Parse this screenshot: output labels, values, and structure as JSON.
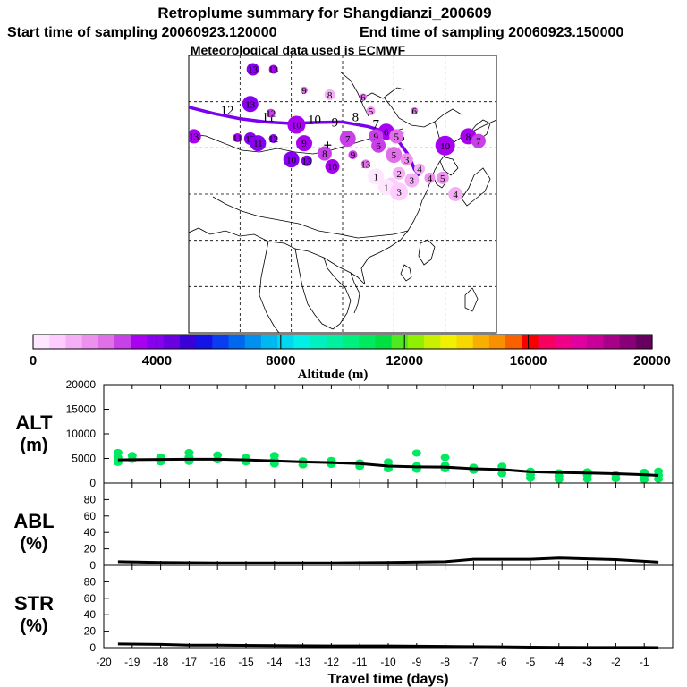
{
  "header": {
    "title": "Retroplume summary for Shangdianzi_200609",
    "start_label": "Start time of sampling 20060923.120000",
    "end_label": "End time of sampling 20060923.150000",
    "met_label": "Meteorological data used is ECMWF"
  },
  "colorbar": {
    "axis_label": "Altitude (m)",
    "ticks": [
      "0",
      "4000",
      "8000",
      "12000",
      "16000",
      "20000"
    ],
    "colors": [
      "#ffe6ff",
      "#ffccff",
      "#f5b0f5",
      "#ee90ee",
      "#e070e8",
      "#c840e8",
      "#a800f0",
      "#8800f0",
      "#6a00e0",
      "#3a00d8",
      "#1414e8",
      "#0a3cf0",
      "#0068f0",
      "#0090f0",
      "#00b8f0",
      "#00d8f0",
      "#00f0e8",
      "#00f0c0",
      "#00f0a0",
      "#00f080",
      "#00ea60",
      "#00e040",
      "#50e820",
      "#90f000",
      "#c8f000",
      "#f0f000",
      "#f8d800",
      "#f8b000",
      "#f89000",
      "#f86000",
      "#f80000",
      "#f80060",
      "#f00088",
      "#e000a0",
      "#c80098",
      "#a80088",
      "#880078",
      "#680060"
    ]
  },
  "colors": {
    "plume_path": "#7a00f0",
    "altitude_points": "#00ea60",
    "line": "#000000"
  },
  "chart_data": [
    {
      "type": "scatter",
      "name": "retroplume map",
      "xlim": [
        90,
        150
      ],
      "ylim": [
        0,
        60
      ],
      "grid_lons": [
        100,
        110,
        120,
        130,
        140
      ],
      "grid_lats": [
        10,
        20,
        30,
        40,
        50
      ],
      "receptor": {
        "lon": 117.1,
        "lat": 40.6
      },
      "path": [
        [
          90,
          48.8
        ],
        [
          95,
          47.4
        ],
        [
          100,
          46.3
        ],
        [
          105,
          45.6
        ],
        [
          110,
          45.3
        ],
        [
          115,
          45.5
        ],
        [
          120,
          45.6
        ],
        [
          125,
          44.6
        ],
        [
          128,
          43.6
        ],
        [
          131,
          41.3
        ],
        [
          133,
          38.2
        ],
        [
          134,
          35.4
        ],
        [
          135,
          34.0
        ]
      ],
      "path_labels": [
        {
          "t": "12",
          "lon": 97.5,
          "lat": 47.2
        },
        {
          "t": "11",
          "lon": 105.5,
          "lat": 45.8
        },
        {
          "t": "10",
          "lon": 114.5,
          "lat": 45.2
        },
        {
          "t": "9",
          "lon": 118.5,
          "lat": 44.6
        },
        {
          "t": "8",
          "lon": 122.5,
          "lat": 45.8
        },
        {
          "t": "7",
          "lon": 126.5,
          "lat": 44.2
        },
        {
          "t": "6",
          "lon": 128.0,
          "lat": 43.3
        },
        {
          "t": "5",
          "lon": 131.5,
          "lat": 41.4
        }
      ],
      "clusters": [
        {
          "t": "13",
          "lon": 91.0,
          "lat": 42.5,
          "alt": 3400,
          "r": 8
        },
        {
          "t": "13",
          "lon": 102.5,
          "lat": 57.0,
          "alt": 4100,
          "r": 7
        },
        {
          "t": "13",
          "lon": 106.5,
          "lat": 57.0,
          "alt": 3400,
          "r": 5
        },
        {
          "t": "13",
          "lon": 102.0,
          "lat": 49.5,
          "alt": 3800,
          "r": 9
        },
        {
          "t": "12",
          "lon": 106.0,
          "lat": 47.5,
          "alt": 3000,
          "r": 5
        },
        {
          "t": "9",
          "lon": 112.5,
          "lat": 52.5,
          "alt": 2600,
          "r": 4
        },
        {
          "t": "8",
          "lon": 117.5,
          "lat": 51.5,
          "alt": 1500,
          "r": 6
        },
        {
          "t": "6",
          "lon": 124.0,
          "lat": 51.0,
          "alt": 2200,
          "r": 4
        },
        {
          "t": "5",
          "lon": 125.5,
          "lat": 48.0,
          "alt": 2000,
          "r": 5
        },
        {
          "t": "6",
          "lon": 134.0,
          "lat": 48.0,
          "alt": 2500,
          "r": 4
        },
        {
          "t": "12",
          "lon": 102.0,
          "lat": 42.0,
          "alt": 4100,
          "r": 7
        },
        {
          "t": "11",
          "lon": 103.5,
          "lat": 41.0,
          "alt": 3800,
          "r": 9
        },
        {
          "t": "11",
          "lon": 99.5,
          "lat": 42.2,
          "alt": 3600,
          "r": 5
        },
        {
          "t": "10",
          "lon": 111.0,
          "lat": 45.0,
          "alt": 3600,
          "r": 10
        },
        {
          "t": "9",
          "lon": 112.5,
          "lat": 41.0,
          "alt": 3400,
          "r": 9
        },
        {
          "t": "8",
          "lon": 116.5,
          "lat": 38.8,
          "alt": 3000,
          "r": 8
        },
        {
          "t": "7",
          "lon": 121.0,
          "lat": 42.0,
          "alt": 3100,
          "r": 9
        },
        {
          "t": "6",
          "lon": 128.5,
          "lat": 43.5,
          "alt": 3400,
          "r": 9
        },
        {
          "t": "5",
          "lon": 130.5,
          "lat": 42.5,
          "alt": 2500,
          "r": 8
        },
        {
          "t": "9",
          "lon": 126.5,
          "lat": 42.5,
          "alt": 2800,
          "r": 8
        },
        {
          "t": "12",
          "lon": 106.5,
          "lat": 42.0,
          "alt": 3700,
          "r": 5
        },
        {
          "t": "10",
          "lon": 110.0,
          "lat": 37.5,
          "alt": 3900,
          "r": 9
        },
        {
          "t": "13",
          "lon": 113.0,
          "lat": 37.2,
          "alt": 3700,
          "r": 6
        },
        {
          "t": "10",
          "lon": 118.0,
          "lat": 36.0,
          "alt": 3500,
          "r": 8
        },
        {
          "t": "9",
          "lon": 122.0,
          "lat": 38.5,
          "alt": 2800,
          "r": 5
        },
        {
          "t": "13",
          "lon": 124.5,
          "lat": 36.5,
          "alt": 2400,
          "r": 5
        },
        {
          "t": "6",
          "lon": 127.0,
          "lat": 40.5,
          "alt": 2700,
          "r": 8
        },
        {
          "t": "5",
          "lon": 130.0,
          "lat": 38.5,
          "alt": 2600,
          "r": 9
        },
        {
          "t": "3",
          "lon": 132.5,
          "lat": 37.5,
          "alt": 1700,
          "r": 7
        },
        {
          "t": "4",
          "lon": 135.0,
          "lat": 35.5,
          "alt": 1500,
          "r": 6
        },
        {
          "t": "10",
          "lon": 140.0,
          "lat": 40.5,
          "alt": 3200,
          "r": 11
        },
        {
          "t": "8",
          "lon": 144.5,
          "lat": 42.5,
          "alt": 3300,
          "r": 9
        },
        {
          "t": "7",
          "lon": 146.5,
          "lat": 41.5,
          "alt": 3100,
          "r": 8
        },
        {
          "t": "4",
          "lon": 137.0,
          "lat": 33.5,
          "alt": 1600,
          "r": 6
        },
        {
          "t": "3",
          "lon": 133.5,
          "lat": 33.0,
          "alt": 1200,
          "r": 8
        },
        {
          "t": "2",
          "lon": 131.0,
          "lat": 34.5,
          "alt": 1200,
          "r": 7
        },
        {
          "t": "1",
          "lon": 126.5,
          "lat": 33.8,
          "alt": 400,
          "r": 9
        },
        {
          "t": "2",
          "lon": 129.5,
          "lat": 32.0,
          "alt": 800,
          "r": 8
        },
        {
          "t": "1",
          "lon": 128.5,
          "lat": 31.5,
          "alt": 500,
          "r": 9
        },
        {
          "t": "3",
          "lon": 131.0,
          "lat": 30.5,
          "alt": 900,
          "r": 10
        },
        {
          "t": "5",
          "lon": 139.5,
          "lat": 33.5,
          "alt": 1800,
          "r": 7
        },
        {
          "t": "4",
          "lon": 142.0,
          "lat": 30.0,
          "alt": 1400,
          "r": 8
        }
      ]
    },
    {
      "type": "line",
      "name": "ALT",
      "ylabel": "ALT (m)",
      "ylabel_lines": [
        "ALT",
        "(m)"
      ],
      "xlim": [
        -20,
        0
      ],
      "ylim": [
        0,
        20000
      ],
      "yticks": [
        "0",
        "5000",
        "10000",
        "15000",
        "20000"
      ],
      "ytick_values": [
        0,
        5000,
        10000,
        15000,
        20000
      ],
      "x": [
        -19.5,
        -19,
        -18,
        -17,
        -16,
        -15,
        -14,
        -13,
        -12,
        -11,
        -10,
        -9,
        -8,
        -7,
        -6,
        -5,
        -4,
        -3,
        -2,
        -1,
        -0.5
      ],
      "values": [
        4700,
        4750,
        4800,
        4850,
        4850,
        4700,
        4500,
        4300,
        4150,
        3950,
        3450,
        3300,
        3250,
        2900,
        2750,
        2300,
        2150,
        2050,
        1900,
        1700,
        1550
      ],
      "points": [
        [
          -19.5,
          4200
        ],
        [
          -19.5,
          5200
        ],
        [
          -19.5,
          6200
        ],
        [
          -19,
          4800
        ],
        [
          -19,
          5600
        ],
        [
          -18,
          4300
        ],
        [
          -18,
          5300
        ],
        [
          -17,
          4400
        ],
        [
          -17,
          5300
        ],
        [
          -17,
          6200
        ],
        [
          -16,
          4700
        ],
        [
          -16,
          5700
        ],
        [
          -15,
          4300
        ],
        [
          -15,
          5200
        ],
        [
          -14,
          3900
        ],
        [
          -14,
          4700
        ],
        [
          -14,
          5600
        ],
        [
          -13,
          3700
        ],
        [
          -13,
          4500
        ],
        [
          -12,
          3800
        ],
        [
          -12,
          4600
        ],
        [
          -11,
          3400
        ],
        [
          -11,
          4100
        ],
        [
          -10,
          2900
        ],
        [
          -10,
          3600
        ],
        [
          -10,
          4300
        ],
        [
          -9,
          2800
        ],
        [
          -9,
          3500
        ],
        [
          -9,
          6100
        ],
        [
          -8,
          2900
        ],
        [
          -8,
          3600
        ],
        [
          -8,
          5200
        ],
        [
          -7,
          2600
        ],
        [
          -7,
          3200
        ],
        [
          -6,
          1900
        ],
        [
          -6,
          2700
        ],
        [
          -6,
          3400
        ],
        [
          -5,
          1000
        ],
        [
          -5,
          1700
        ],
        [
          -5,
          2400
        ],
        [
          -4,
          700
        ],
        [
          -4,
          1400
        ],
        [
          -4,
          2100
        ],
        [
          -3,
          800
        ],
        [
          -3,
          1600
        ],
        [
          -3,
          2300
        ],
        [
          -2,
          900
        ],
        [
          -2,
          1700
        ],
        [
          -1,
          700
        ],
        [
          -1,
          1500
        ],
        [
          -1,
          2200
        ],
        [
          -0.5,
          800
        ],
        [
          -0.5,
          1600
        ],
        [
          -0.5,
          2400
        ]
      ]
    },
    {
      "type": "line",
      "name": "ABL",
      "ylabel": "ABL (%)",
      "ylabel_lines": [
        "ABL",
        "(%)"
      ],
      "xlim": [
        -20,
        0
      ],
      "ylim": [
        0,
        100
      ],
      "yticks": [
        "0",
        "20",
        "40",
        "60",
        "80"
      ],
      "ytick_values": [
        0,
        20,
        40,
        60,
        80
      ],
      "x": [
        -19.5,
        -18,
        -16,
        -14,
        -12,
        -10,
        -8,
        -7,
        -6,
        -5,
        -4,
        -3,
        -2,
        -1,
        -0.5
      ],
      "values": [
        4.5,
        3.5,
        3.0,
        3.0,
        3.0,
        3.5,
        4.5,
        7.5,
        7.5,
        7.5,
        9.0,
        8.0,
        7.0,
        5.0,
        4.0
      ]
    },
    {
      "type": "line",
      "name": "STR",
      "ylabel": "STR (%)",
      "ylabel_lines": [
        "STR",
        "(%)"
      ],
      "xlim": [
        -20,
        0
      ],
      "ylim": [
        0,
        100
      ],
      "yticks": [
        "0",
        "20",
        "40",
        "60",
        "80"
      ],
      "ytick_values": [
        0,
        20,
        40,
        60,
        80
      ],
      "xlabel": "Travel time (days)",
      "xticks": [
        "-20",
        "-19",
        "-18",
        "-17",
        "-16",
        "-15",
        "-14",
        "-13",
        "-12",
        "-11",
        "-10",
        "-9",
        "-8",
        "-7",
        "-6",
        "-5",
        "-4",
        "-3",
        "-2",
        "-1"
      ],
      "xtick_values": [
        -20,
        -19,
        -18,
        -17,
        -16,
        -15,
        -14,
        -13,
        -12,
        -11,
        -10,
        -9,
        -8,
        -7,
        -6,
        -5,
        -4,
        -3,
        -2,
        -1
      ],
      "x": [
        -19.5,
        -18,
        -17,
        -16,
        -14,
        -12,
        -10,
        -8,
        -6,
        -5,
        -4,
        -3,
        -2,
        -1,
        -0.5
      ],
      "values": [
        4.5,
        4.0,
        3.0,
        3.0,
        2.5,
        2.0,
        2.0,
        1.5,
        1.0,
        0.5,
        0.3,
        0.2,
        0.1,
        0.1,
        0.0
      ]
    }
  ]
}
